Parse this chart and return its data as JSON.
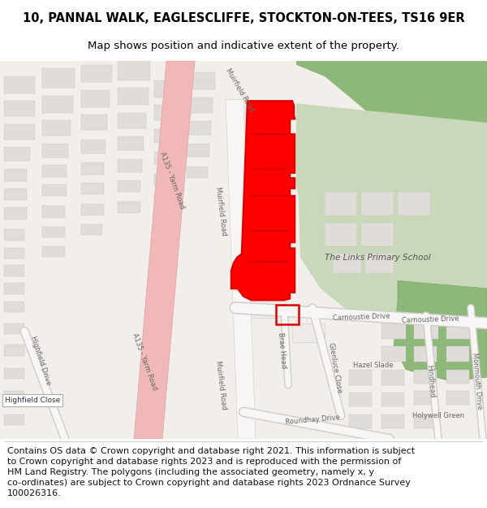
{
  "title_line1": "10, PANNAL WALK, EAGLESCLIFFE, STOCKTON-ON-TEES, TS16 9ER",
  "title_line2": "Map shows position and indicative extent of the property.",
  "footer_text": "Contains OS data © Crown copyright and database right 2021. This information is subject\nto Crown copyright and database rights 2023 and is reproduced with the permission of\nHM Land Registry. The polygons (including the associated geometry, namely x, y\nco-ordinates) are subject to Crown copyright and database rights 2023 Ordnance Survey\n100026316.",
  "title_fontsize": 10.5,
  "subtitle_fontsize": 9.5,
  "footer_fontsize": 8.0,
  "bg_color": "#ffffff",
  "map_bg_color": "#f2eeea",
  "green_dark": "#7aaa60",
  "green_light": "#b8d4a8",
  "school_ground": "#c8d8b8",
  "road_pink": "#f0b8b8",
  "building_light": "#e0dcd8",
  "building_white": "#f0eeec",
  "red_color": "#dd0000",
  "road_white": "#ffffff",
  "road_outline": "#d0ccc8",
  "text_dark": "#333333",
  "text_road": "#666666"
}
